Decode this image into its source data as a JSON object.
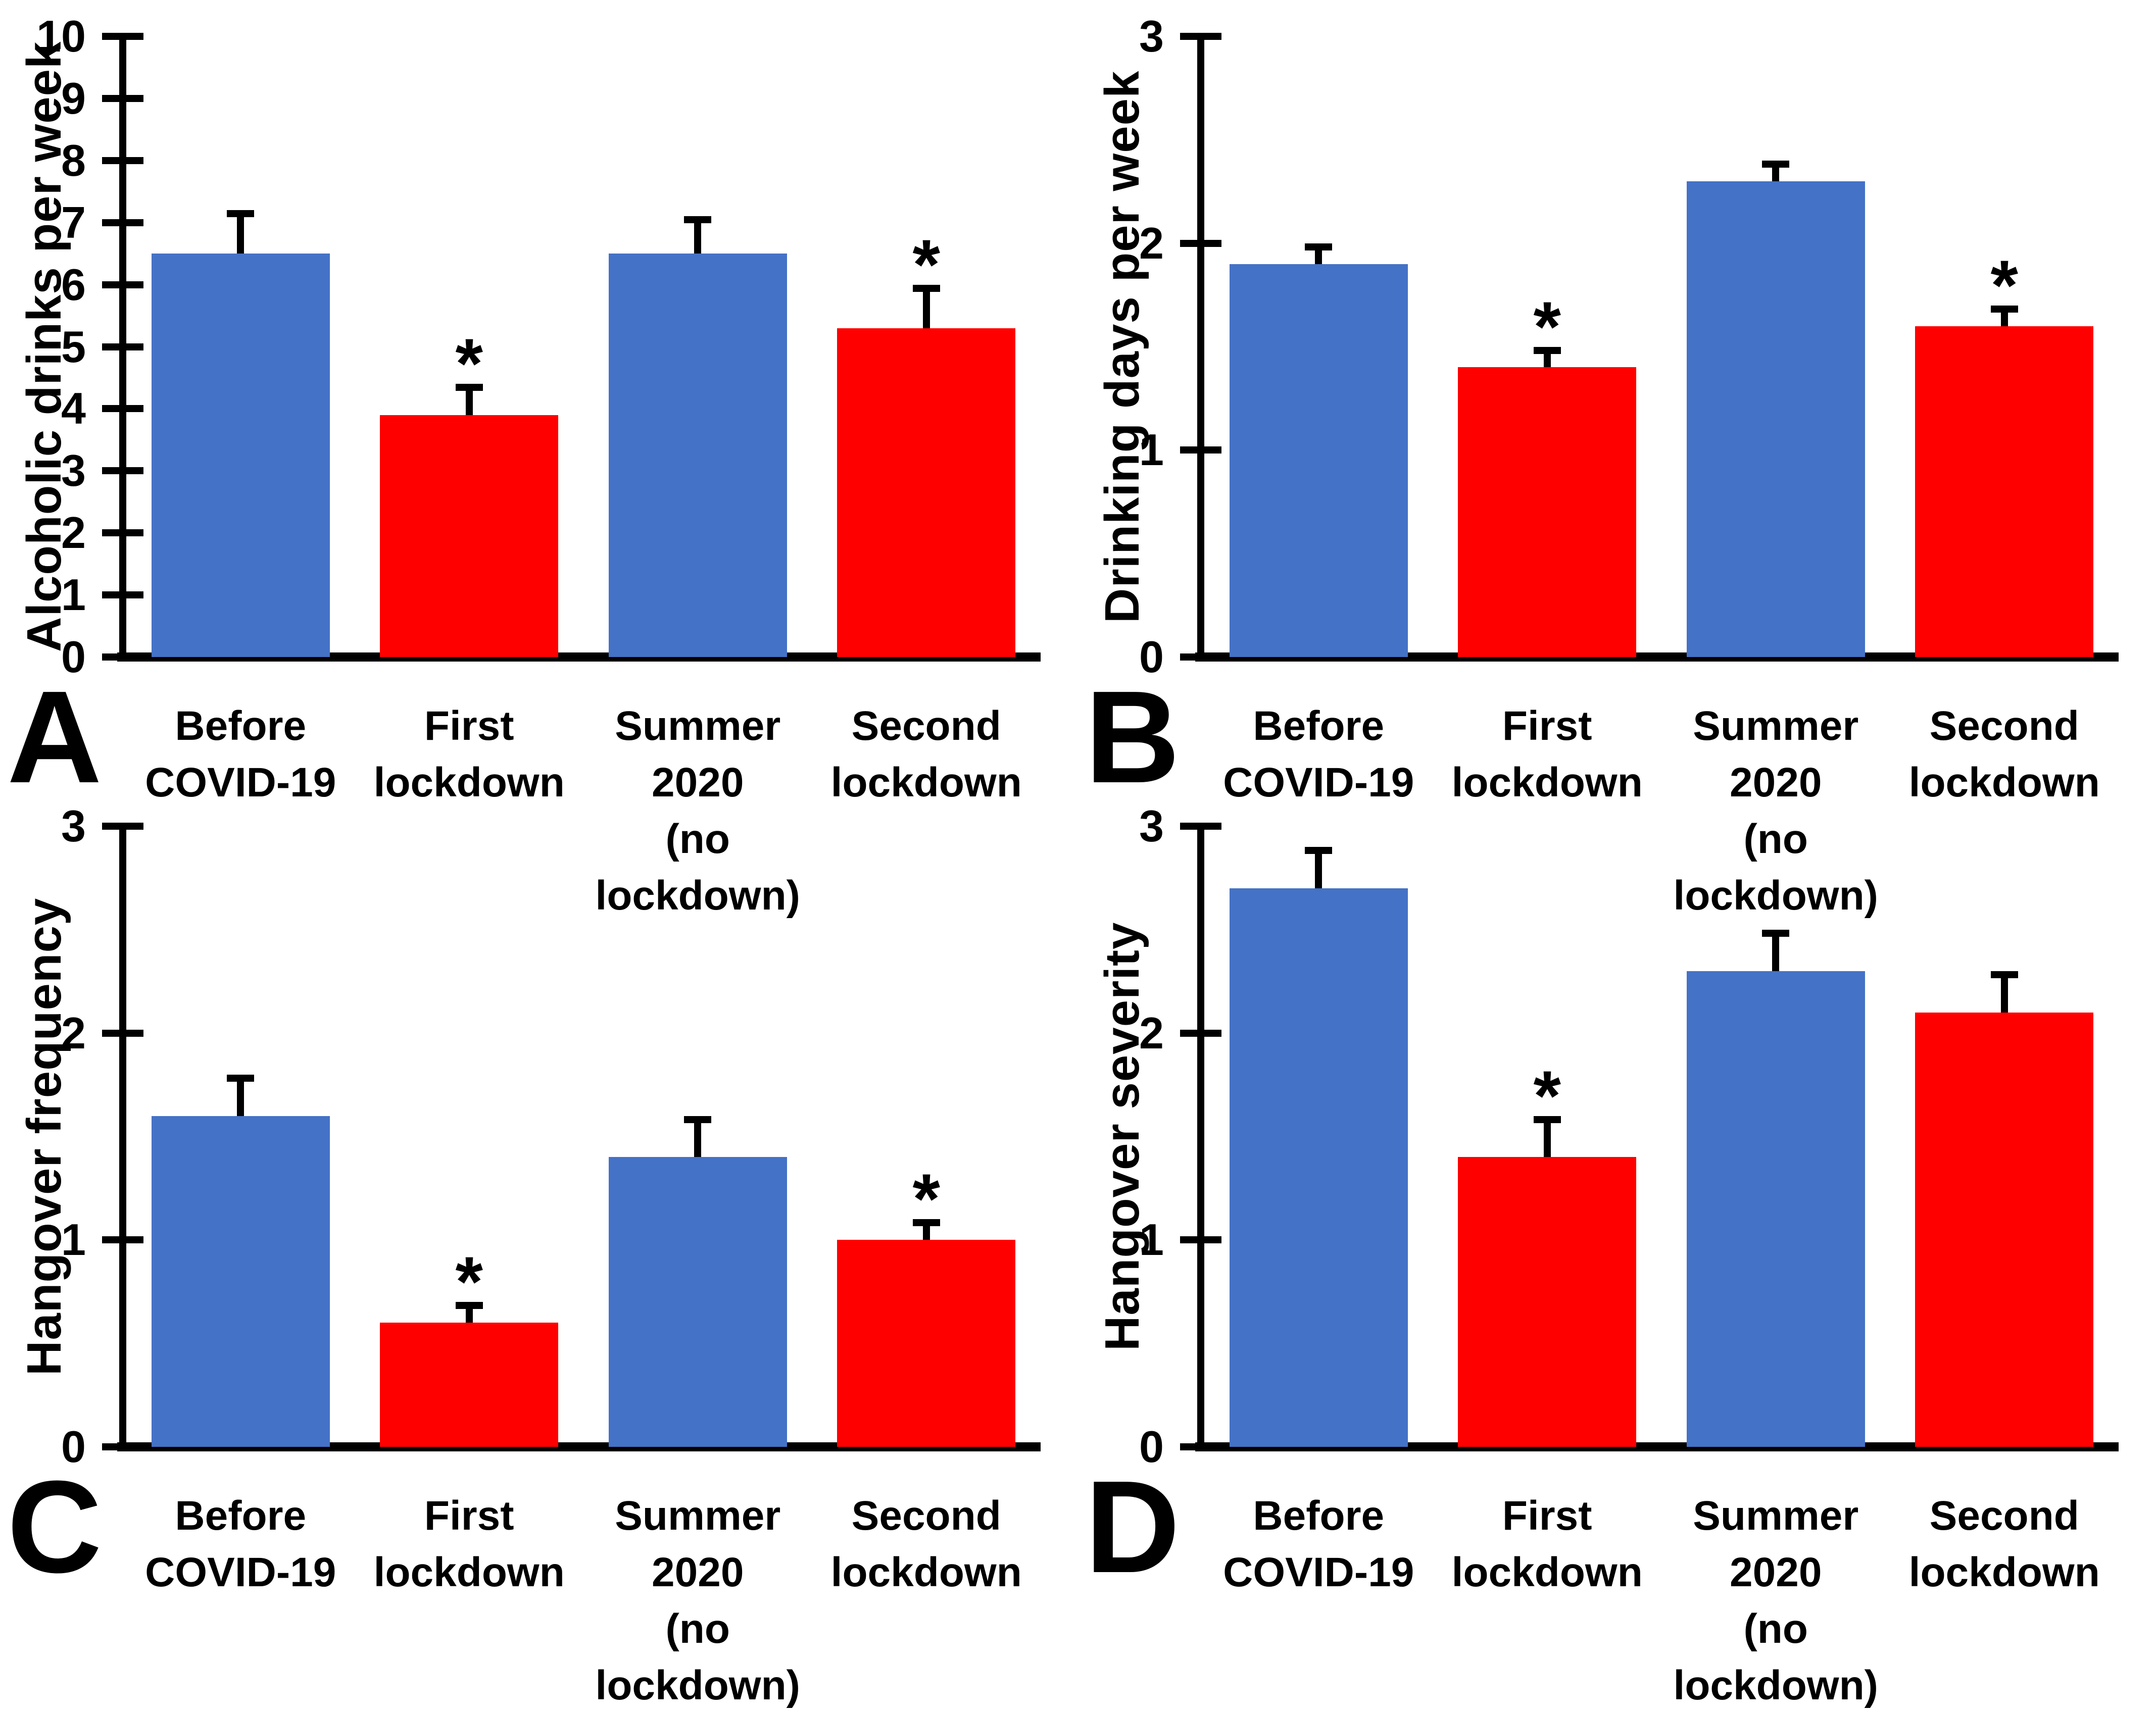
{
  "figure_colors": {
    "bar_blue": "#4472C6",
    "bar_red": "#FF0000",
    "axis_black": "#000000",
    "background": "#FFFFFF"
  },
  "significance_marker": "*",
  "chart_data": [
    {
      "type": "bar",
      "panel_label": "A",
      "ylabel": "Alcoholic drinks per week",
      "xlabel": "",
      "categories": [
        "Before\nCOVID-19",
        "First\nlockdown",
        "Summer 2020\n(no lockdown)",
        "Second\nlockdown"
      ],
      "values": [
        6.5,
        3.9,
        6.5,
        5.3
      ],
      "error_upper": [
        0.7,
        0.5,
        0.6,
        0.7
      ],
      "significance": [
        false,
        true,
        false,
        true
      ],
      "bar_colors": [
        "#4472C6",
        "#FF0000",
        "#4472C6",
        "#FF0000"
      ],
      "ylim": [
        0,
        10
      ],
      "yticks": [
        0,
        1,
        2,
        3,
        4,
        5,
        6,
        7,
        8,
        9,
        10
      ],
      "grid": false,
      "legend": "none",
      "error_bars": "upper-only-with-cap"
    },
    {
      "type": "bar",
      "panel_label": "B",
      "ylabel": "Drinking days per week",
      "xlabel": "",
      "categories": [
        "Before\nCOVID-19",
        "First\nlockdown",
        "Summer 2020\n(no lockdown)",
        "Second\nlockdown"
      ],
      "values": [
        1.9,
        1.4,
        2.3,
        1.6
      ],
      "error_upper": [
        0.1,
        0.1,
        0.1,
        0.1
      ],
      "significance": [
        false,
        true,
        false,
        true
      ],
      "bar_colors": [
        "#4472C6",
        "#FF0000",
        "#4472C6",
        "#FF0000"
      ],
      "ylim": [
        0,
        3
      ],
      "yticks": [
        0,
        1,
        2,
        3
      ],
      "grid": false,
      "legend": "none",
      "error_bars": "upper-only-with-cap"
    },
    {
      "type": "bar",
      "panel_label": "C",
      "ylabel": "Hangover frequency",
      "xlabel": "",
      "categories": [
        "Before\nCOVID-19",
        "First\nlockdown",
        "Summer 2020\n(no lockdown)",
        "Second\nlockdown"
      ],
      "values": [
        1.6,
        0.6,
        1.4,
        1.0
      ],
      "error_upper": [
        0.2,
        0.1,
        0.2,
        0.1
      ],
      "significance": [
        false,
        true,
        false,
        true
      ],
      "bar_colors": [
        "#4472C6",
        "#FF0000",
        "#4472C6",
        "#FF0000"
      ],
      "ylim": [
        0,
        3
      ],
      "yticks": [
        0,
        1,
        2,
        3
      ],
      "grid": false,
      "legend": "none",
      "error_bars": "upper-only-with-cap"
    },
    {
      "type": "bar",
      "panel_label": "D",
      "ylabel": "Hangover severity",
      "xlabel": "",
      "categories": [
        "Before\nCOVID-19",
        "First\nlockdown",
        "Summer 2020\n(no lockdown)",
        "Second\nlockdown"
      ],
      "values": [
        2.7,
        1.4,
        2.3,
        2.1
      ],
      "error_upper": [
        0.2,
        0.2,
        0.2,
        0.2
      ],
      "significance": [
        false,
        true,
        false,
        false
      ],
      "bar_colors": [
        "#4472C6",
        "#FF0000",
        "#4472C6",
        "#FF0000"
      ],
      "ylim": [
        0,
        3
      ],
      "yticks": [
        0,
        1,
        2,
        3
      ],
      "grid": false,
      "legend": "none",
      "error_bars": "upper-only-with-cap"
    }
  ]
}
